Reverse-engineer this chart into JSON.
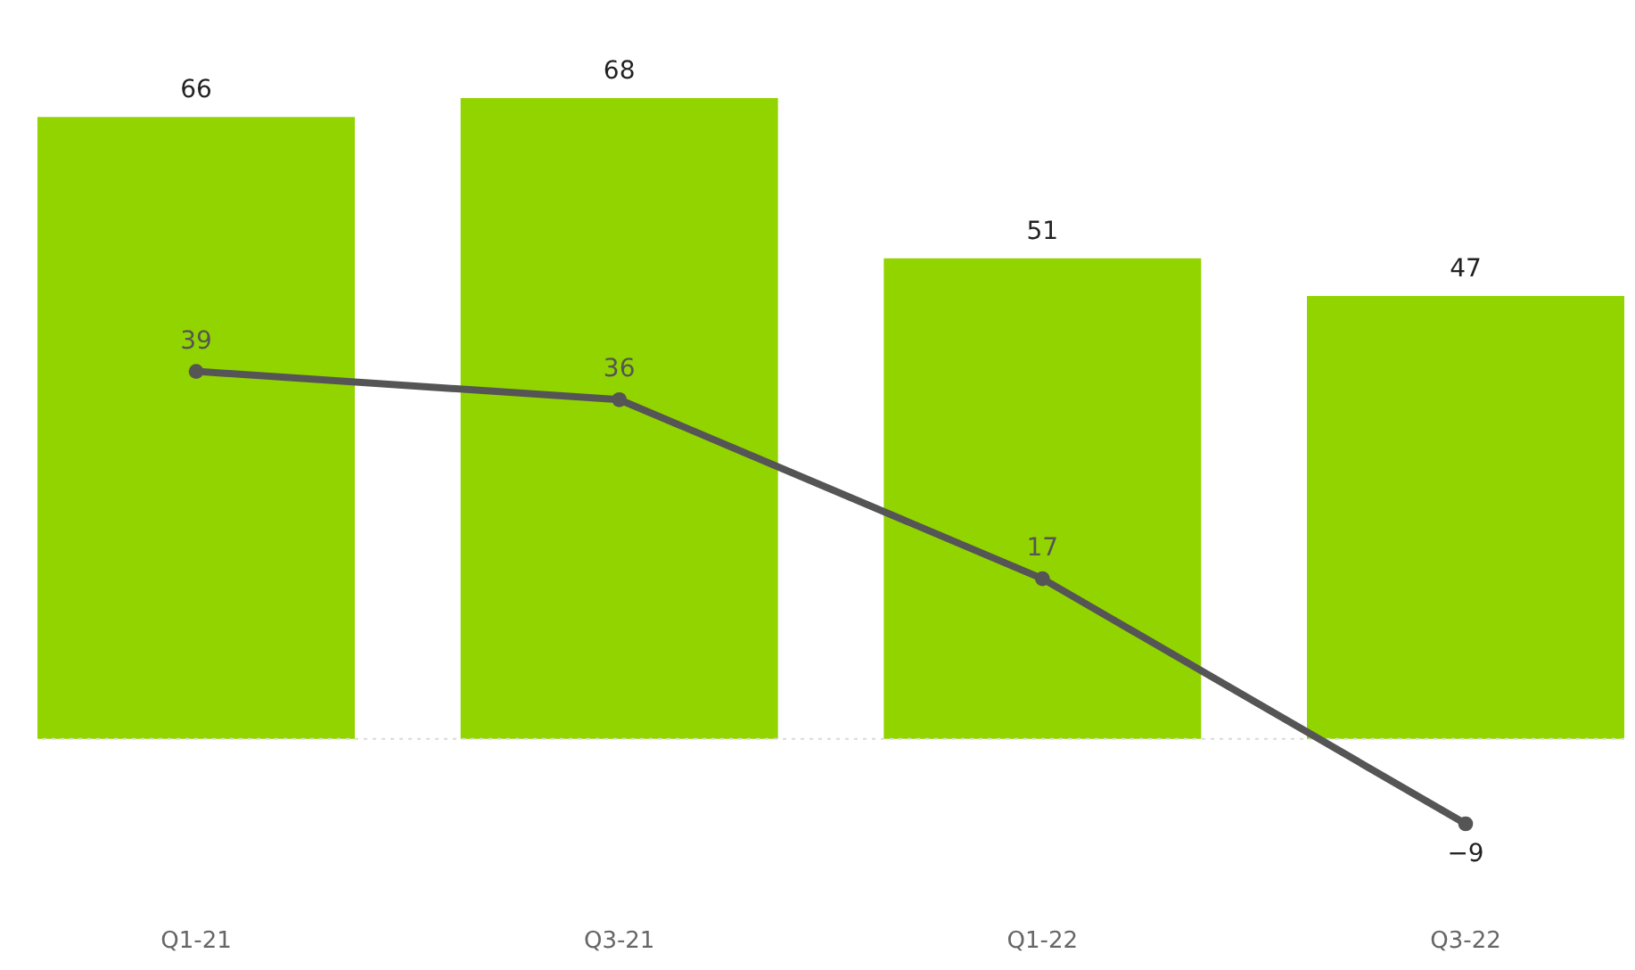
{
  "chart_data": {
    "type": "bar",
    "categories": [
      "Q1-21",
      "Q3-21",
      "Q1-22",
      "Q3-22"
    ],
    "series": [
      {
        "color": "#92d400",
        "values": [
          66,
          68,
          51,
          47
        ]
      },
      {
        "type": "line",
        "color": "#555555",
        "values": [
          39,
          36,
          17,
          -9
        ]
      }
    ],
    "data_labels": true,
    "tick_labels": "x",
    "marker": "circle",
    "line_style": "solid",
    "ref_lines": [
      {
        "axis": "y",
        "value": 0,
        "color": "#d9d9d9",
        "line_style": "dotted"
      }
    ]
  }
}
